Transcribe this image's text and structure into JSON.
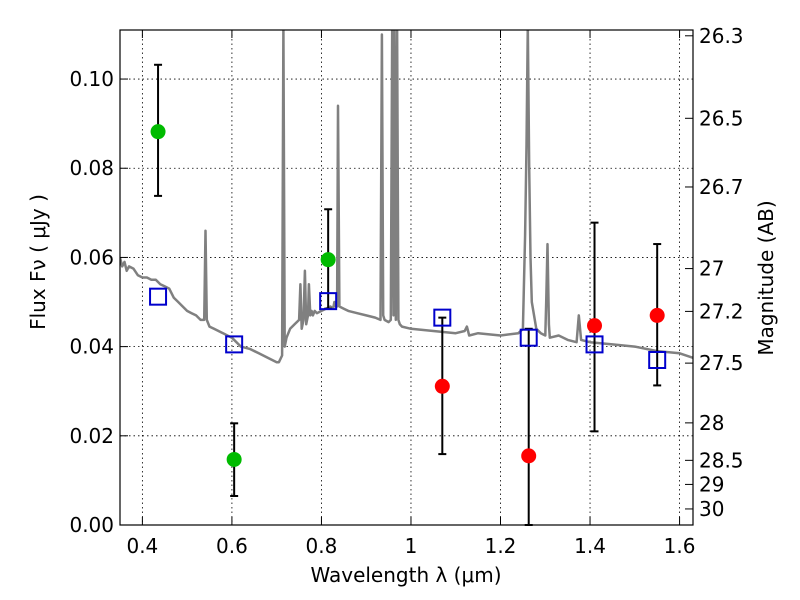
{
  "chart_data": {
    "type": "scatter",
    "xlabel": "Wavelength  λ (μm)",
    "ylabel": "Flux  Fν  ( μJy )",
    "ylabel_right": "Magnitude (AB)",
    "xlim": [
      0.35,
      1.63
    ],
    "ylim": [
      0.0,
      0.111
    ],
    "grid": true,
    "x_ticks": [
      0.4,
      0.6,
      0.8,
      1.0,
      1.2,
      1.4,
      1.6
    ],
    "x_tick_labels": [
      "0.4",
      "0.6",
      "0.8",
      "1",
      "1.2",
      "1.4",
      "1.6"
    ],
    "y_ticks": [
      0.0,
      0.02,
      0.04,
      0.06,
      0.08,
      0.1
    ],
    "y_tick_labels": [
      "0.00",
      "0.02",
      "0.04",
      "0.06",
      "0.08",
      "0.10"
    ],
    "right_ticks": [
      {
        "label": "26.3",
        "flux": 0.1097
      },
      {
        "label": "26.5",
        "flux": 0.0912
      },
      {
        "label": "26.7",
        "flux": 0.0758
      },
      {
        "label": "27",
        "flux": 0.0575
      },
      {
        "label": "27.2",
        "flux": 0.0479
      },
      {
        "label": "27.5",
        "flux": 0.0363
      },
      {
        "label": "28",
        "flux": 0.0229
      },
      {
        "label": "28.5",
        "flux": 0.0145
      },
      {
        "label": "29",
        "flux": 0.0091
      },
      {
        "label": "30",
        "flux": 0.0036
      }
    ],
    "series": [
      {
        "color": "#00bb00",
        "marker": "circle",
        "points": [
          {
            "x": 0.435,
            "y": 0.0882,
            "err_lo": 0.0738,
            "err_hi": 0.1032
          },
          {
            "x": 0.605,
            "y": 0.0147,
            "err_lo": 0.0065,
            "err_hi": 0.0228
          },
          {
            "x": 0.815,
            "y": 0.0595,
            "err_lo": 0.0485,
            "err_hi": 0.0708
          }
        ]
      },
      {
        "color": "#ff0000",
        "marker": "circle",
        "points": [
          {
            "x": 1.07,
            "y": 0.0311,
            "err_lo": 0.0159,
            "err_hi": 0.0465
          },
          {
            "x": 1.263,
            "y": 0.0155,
            "err_lo": 0.0,
            "err_hi": 0.044
          },
          {
            "x": 1.41,
            "y": 0.0447,
            "err_lo": 0.021,
            "err_hi": 0.0678
          },
          {
            "x": 1.55,
            "y": 0.047,
            "err_lo": 0.0313,
            "err_hi": 0.063
          }
        ]
      },
      {
        "color": "#0000cc",
        "marker": "square-open",
        "points": [
          {
            "x": 0.435,
            "y": 0.0512
          },
          {
            "x": 0.605,
            "y": 0.0405
          },
          {
            "x": 0.815,
            "y": 0.0502
          },
          {
            "x": 1.07,
            "y": 0.0465
          },
          {
            "x": 1.263,
            "y": 0.042
          },
          {
            "x": 1.41,
            "y": 0.0405
          },
          {
            "x": 1.55,
            "y": 0.037
          }
        ]
      }
    ],
    "spectrum": {
      "color": "#808080",
      "x": [
        0.35,
        0.355,
        0.36,
        0.365,
        0.37,
        0.38,
        0.39,
        0.4,
        0.41,
        0.42,
        0.43,
        0.44,
        0.45,
        0.46,
        0.47,
        0.48,
        0.49,
        0.5,
        0.51,
        0.52,
        0.53,
        0.538,
        0.541,
        0.544,
        0.55,
        0.56,
        0.57,
        0.58,
        0.59,
        0.6,
        0.62,
        0.64,
        0.66,
        0.68,
        0.7,
        0.705,
        0.712,
        0.715,
        0.718,
        0.722,
        0.73,
        0.74,
        0.75,
        0.753,
        0.756,
        0.76,
        0.763,
        0.766,
        0.77,
        0.772,
        0.775,
        0.778,
        0.781,
        0.785,
        0.79,
        0.8,
        0.81,
        0.82,
        0.826,
        0.829,
        0.832,
        0.835,
        0.837,
        0.84,
        0.85,
        0.86,
        0.88,
        0.9,
        0.92,
        0.932,
        0.935,
        0.938,
        0.941,
        0.95,
        0.955,
        0.958,
        0.961,
        0.963,
        0.966,
        0.969,
        0.972,
        0.975,
        0.98,
        1.0,
        1.05,
        1.1,
        1.12,
        1.125,
        1.13,
        1.15,
        1.2,
        1.24,
        1.25,
        1.255,
        1.258,
        1.261,
        1.264,
        1.267,
        1.27,
        1.28,
        1.29,
        1.3,
        1.302,
        1.305,
        1.308,
        1.31,
        1.33,
        1.35,
        1.37,
        1.375,
        1.38,
        1.4,
        1.45,
        1.5,
        1.55,
        1.6,
        1.63
      ],
      "y": [
        0.06,
        0.058,
        0.059,
        0.057,
        0.058,
        0.0575,
        0.056,
        0.0555,
        0.0555,
        0.055,
        0.055,
        0.054,
        0.0535,
        0.053,
        0.051,
        0.05,
        0.049,
        0.048,
        0.0475,
        0.047,
        0.046,
        0.046,
        0.066,
        0.046,
        0.0445,
        0.044,
        0.0435,
        0.043,
        0.0425,
        0.042,
        0.04,
        0.0395,
        0.0385,
        0.0375,
        0.0365,
        0.0365,
        0.038,
        0.112,
        0.04,
        0.042,
        0.044,
        0.045,
        0.046,
        0.054,
        0.044,
        0.046,
        0.057,
        0.045,
        0.047,
        0.054,
        0.047,
        0.048,
        0.047,
        0.048,
        0.0475,
        0.048,
        0.0485,
        0.049,
        0.0485,
        0.05,
        0.049,
        0.049,
        0.094,
        0.049,
        0.0485,
        0.048,
        0.0475,
        0.047,
        0.0465,
        0.046,
        0.11,
        0.047,
        0.046,
        0.0455,
        0.046,
        0.112,
        0.047,
        0.112,
        0.046,
        0.112,
        0.046,
        0.045,
        0.0445,
        0.044,
        0.0435,
        0.043,
        0.0435,
        0.0445,
        0.0425,
        0.043,
        0.0425,
        0.043,
        0.044,
        0.065,
        0.085,
        0.112,
        0.08,
        0.06,
        0.05,
        0.044,
        0.043,
        0.0425,
        0.05,
        0.063,
        0.045,
        0.042,
        0.0425,
        0.0415,
        0.041,
        0.047,
        0.0415,
        0.041,
        0.0405,
        0.04,
        0.039,
        0.0385,
        0.0375
      ],
      "stroke_width": 2.5
    }
  }
}
